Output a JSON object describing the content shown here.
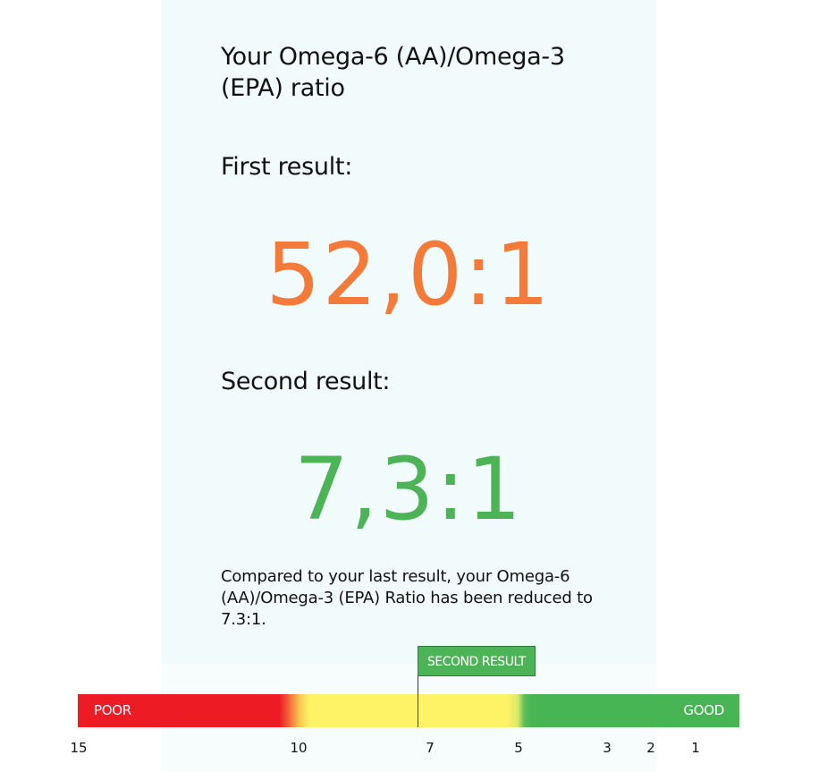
{
  "page": {
    "title": "Your Omega-6 (AA)/Omega-3 (EPA) ratio"
  },
  "first_result": {
    "label": "First result:",
    "value": "52,0:1",
    "color": "#f47a3a"
  },
  "second_result": {
    "label": "Second result:",
    "value": "7,3:1",
    "color": "#4cb356"
  },
  "summary": "Compared to your last result, your Omega-6 (AA)/Omega-3 (EPA) Ratio has been reduced to 7.3:1.",
  "scale": {
    "min_label": "POOR",
    "max_label": "GOOD",
    "marker_label": "SECOND RESULT",
    "marker_value": 7,
    "ticks": [
      {
        "value": 15,
        "label": "15"
      },
      {
        "value": 10,
        "label": "10"
      },
      {
        "value": 7,
        "label": "7"
      },
      {
        "value": 5,
        "label": "5"
      },
      {
        "value": 3,
        "label": "3"
      },
      {
        "value": 2,
        "label": "2"
      },
      {
        "value": 1,
        "label": "1"
      }
    ],
    "colors": {
      "poor": "#ed1c24",
      "moderate": "#fef266",
      "good": "#48b555"
    }
  }
}
